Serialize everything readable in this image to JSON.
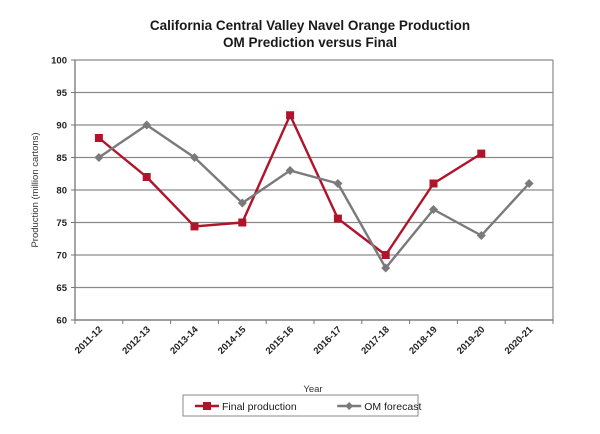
{
  "chart_data": {
    "type": "line",
    "title": "California Central Valley Navel Orange Production",
    "subtitle": "OM Prediction versus Final",
    "xlabel": "Year",
    "ylabel": "Production (million cartons)",
    "ylim": [
      60,
      100
    ],
    "yticks": [
      60,
      65,
      70,
      75,
      80,
      85,
      90,
      95,
      100
    ],
    "grid": true,
    "legend_position": "bottom",
    "categories": [
      "2011-12",
      "2012-13",
      "2013-14",
      "2014-15",
      "2015-16",
      "2016-17",
      "2017-18",
      "2018-19",
      "2019-20",
      "2020-21"
    ],
    "series": [
      {
        "name": "Final production",
        "color": "#b0142a",
        "marker": "square",
        "values": [
          88,
          82,
          74.4,
          75,
          91.5,
          75.6,
          70,
          81,
          85.6,
          null
        ]
      },
      {
        "name": "OM forecast",
        "color": "#7a7a7a",
        "marker": "diamond",
        "values": [
          85,
          90,
          85,
          78,
          83,
          81,
          68,
          77,
          73,
          81
        ]
      }
    ]
  }
}
